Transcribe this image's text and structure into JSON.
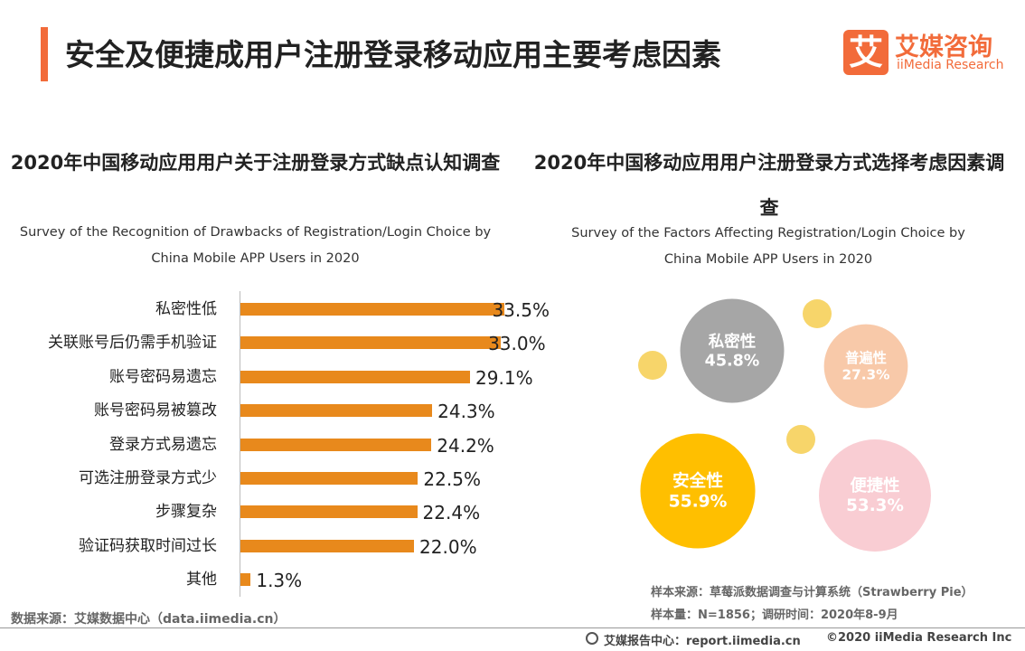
{
  "header": {
    "title": "安全及便捷成用户注册登录移动应用主要考虑因素",
    "logo_mark": "艾",
    "brand": "艾媒咨询",
    "brand_en": "iiMedia Research"
  },
  "chart_data": [
    {
      "type": "bar",
      "orientation": "horizontal",
      "title": "2020年中国移动应用用户关于注册登录方式缺点认知调查",
      "subtitle": "Survey of the Recognition of Drawbacks of Registration/Login Choice by China Mobile APP Users in 2020",
      "categories": [
        "私密性低",
        "关联账号后仍需手机验证",
        "账号密码易遗忘",
        "账号密码易被篡改",
        "登录方式易遗忘",
        "可选注册登录方式少",
        "步骤复杂",
        "验证码获取时间过长",
        "其他"
      ],
      "values": [
        33.5,
        33.0,
        29.1,
        24.3,
        24.2,
        22.5,
        22.4,
        22.0,
        1.3
      ],
      "value_labels": [
        "33.5%",
        "33.0%",
        "29.1%",
        "24.3%",
        "24.2%",
        "22.5%",
        "22.4%",
        "22.0%",
        "1.3%"
      ],
      "color": "#e8891c"
    },
    {
      "type": "bubble",
      "title": "2020年中国移动应用用户注册登录方式选择考虑因素调查",
      "subtitle": "Survey of the Factors Affecting Registration/Login Choice by China Mobile APP Users in 2020",
      "categories": [
        "私密性",
        "普遍性",
        "安全性",
        "便捷性"
      ],
      "values": [
        45.8,
        27.3,
        55.9,
        53.3
      ],
      "value_labels": [
        "45.8%",
        "27.3%",
        "55.9%",
        "53.3%"
      ],
      "colors": [
        "#a6a6a6",
        "#f8c9a9",
        "#ffbf00",
        "#f9cdd3"
      ],
      "notes": [
        "样本来源：草莓派数据调查与计算系统（Strawberry Pie）",
        "样本量：N=1856；调研时间：2020年8-9月"
      ]
    }
  ],
  "footer": {
    "source": "数据来源：艾媒数据中心（data.iimedia.cn）",
    "report_center": "艾媒报告中心：report.iimedia.cn",
    "copyright": "©2020  iiMedia Research  Inc"
  }
}
